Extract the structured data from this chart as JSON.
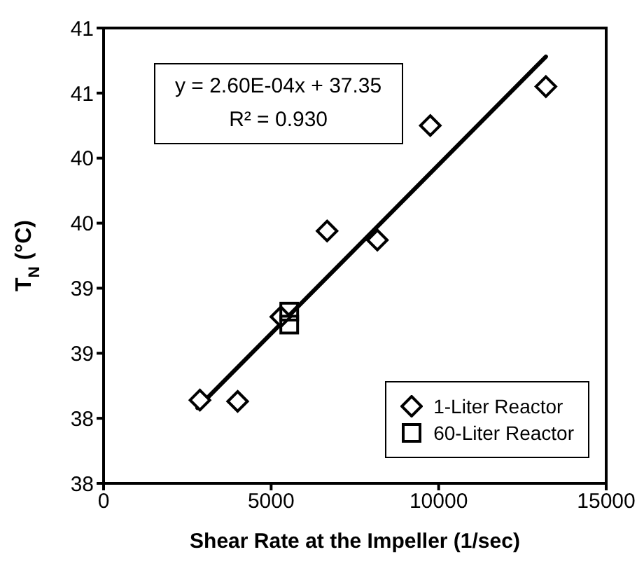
{
  "chart_data": {
    "type": "scatter",
    "xlabel": "Shear Rate at the Impeller (1/sec)",
    "ylabel": "T$_{N}$ (°C)",
    "xlim": [
      0,
      15000
    ],
    "xticks": [
      0,
      5000,
      10000,
      15000
    ],
    "ylim": [
      37.5,
      41
    ],
    "yticks": [
      {
        "value": 37.5,
        "label": "38"
      },
      {
        "value": 38,
        "label": "38"
      },
      {
        "value": 38.5,
        "label": "39"
      },
      {
        "value": 39,
        "label": "39"
      },
      {
        "value": 39.5,
        "label": "40"
      },
      {
        "value": 40,
        "label": "40"
      },
      {
        "value": 40.5,
        "label": "41"
      },
      {
        "value": 41,
        "label": "41"
      }
    ],
    "annotations": [
      "y = 2.60E-04x + 37.35",
      "R² = 0.930"
    ],
    "legend": "bottom right",
    "grid": false,
    "series": [
      {
        "name": "1-Liter Reactor",
        "marker": "diamond",
        "color": "#000000",
        "x": [
          2875,
          4000,
          5290,
          6670,
          8170,
          9750,
          13200
        ],
        "values": [
          38.14,
          38.13,
          38.78,
          39.44,
          39.37,
          40.25,
          40.55
        ]
      },
      {
        "name": "60-Liter Reactor",
        "marker": "square",
        "color": "#000000",
        "x": [
          5540,
          5540
        ],
        "values": [
          38.82,
          38.72
        ]
      },
      {
        "type": "line",
        "marker": "none",
        "color": "#000000",
        "x": [
          2800,
          13200
        ],
        "values": [
          38.08,
          40.78
        ]
      }
    ]
  }
}
